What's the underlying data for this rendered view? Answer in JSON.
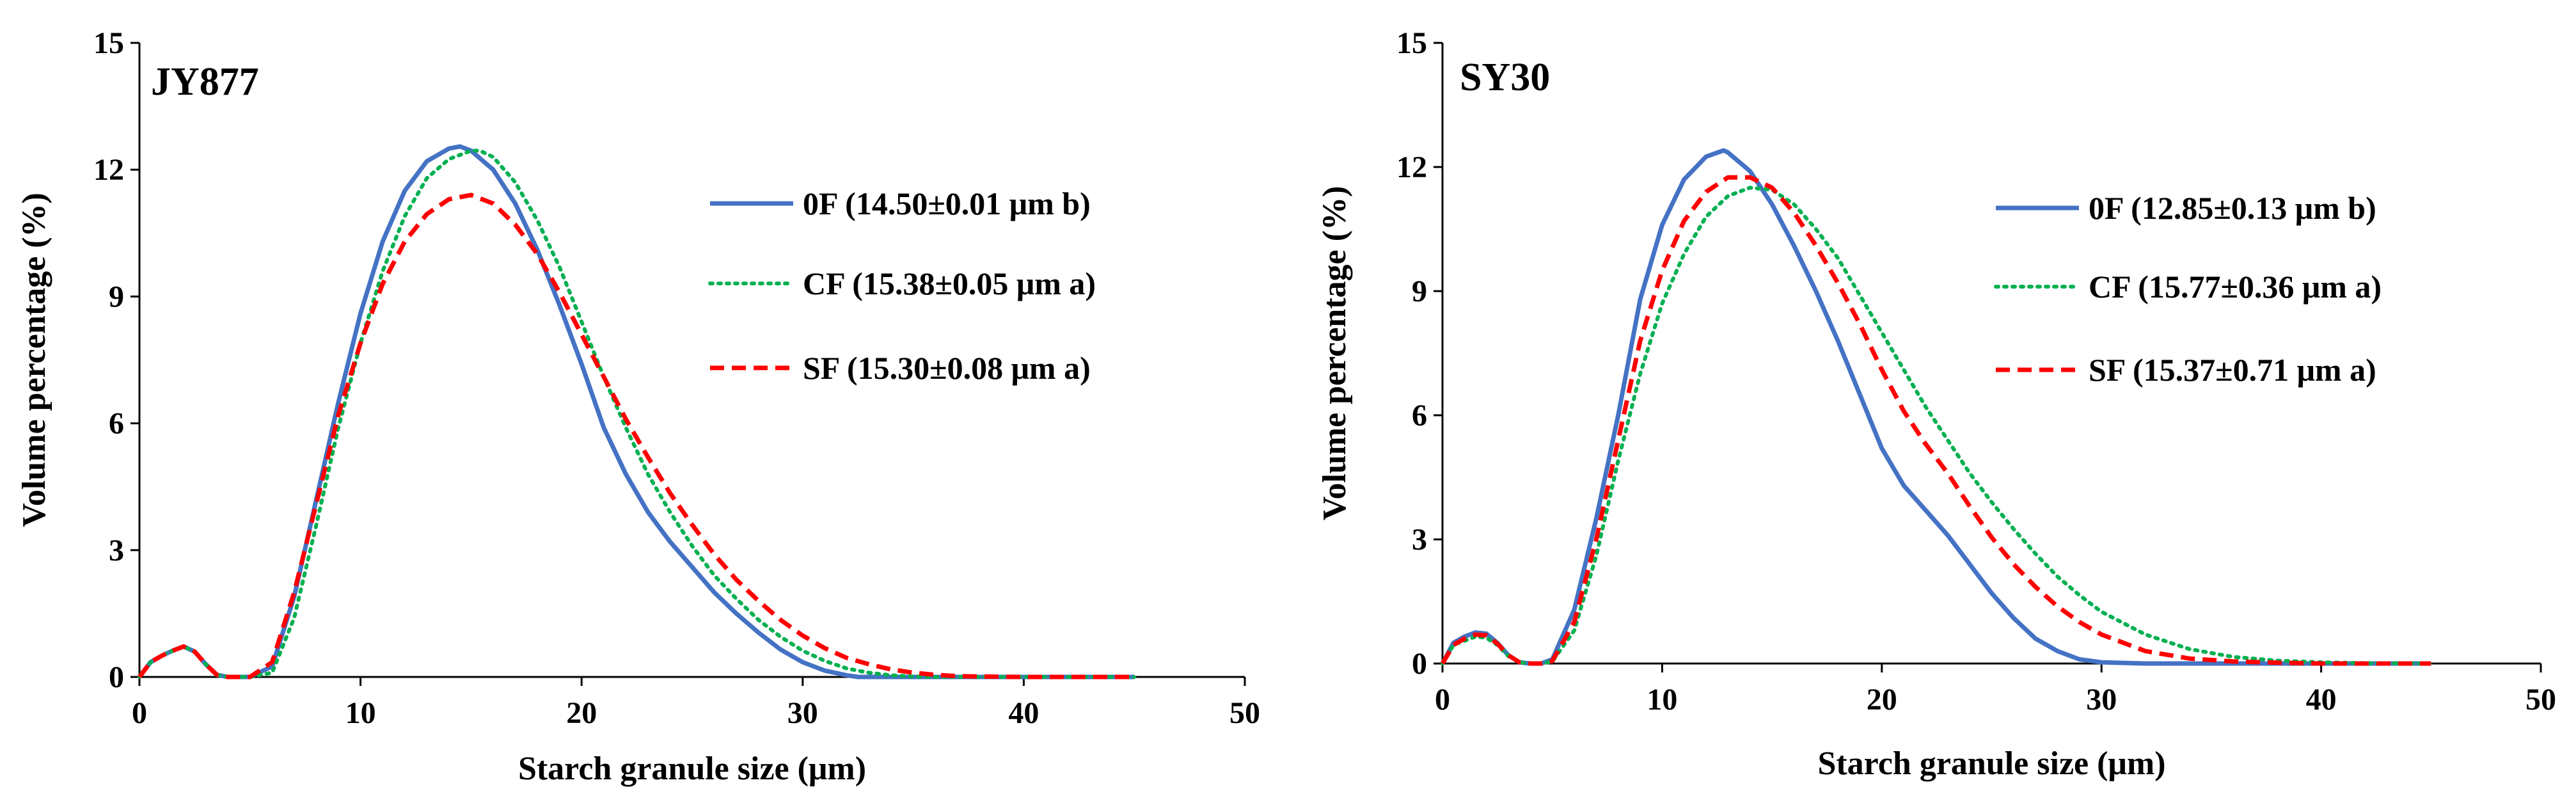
{
  "colors": {
    "zero_f": "#4472c4",
    "cf": "#00b050",
    "sf": "#ff0000",
    "axis": "#000000"
  },
  "chart_data": [
    {
      "type": "line",
      "title": "JY877",
      "xlabel": "Starch granule size (μm)",
      "ylabel": "Volume percentage (%)",
      "xlim": [
        0,
        50
      ],
      "ylim": [
        0,
        15
      ],
      "xticks": [
        "0",
        "10",
        "20",
        "30",
        "40",
        "50"
      ],
      "yticks": [
        "0",
        "3",
        "6",
        "9",
        "12",
        "15"
      ],
      "series": [
        {
          "name": "0F (14.50±0.01 μm b)",
          "style": "solid",
          "x": [
            0,
            0.5,
            1,
            1.5,
            2,
            2.5,
            3,
            3.5,
            4,
            5,
            6,
            7,
            8,
            9,
            10,
            11,
            12,
            13,
            14,
            14.5,
            15,
            16,
            17,
            18,
            19,
            20,
            21,
            22,
            23,
            24,
            25,
            26,
            27,
            28,
            29,
            30,
            31,
            32,
            32.5,
            33,
            35,
            40,
            45
          ],
          "y": [
            0,
            0.35,
            0.5,
            0.62,
            0.72,
            0.6,
            0.3,
            0.05,
            0,
            0,
            0.25,
            1.9,
            4.2,
            6.5,
            8.6,
            10.3,
            11.5,
            12.2,
            12.5,
            12.55,
            12.45,
            12.0,
            11.2,
            10.1,
            8.8,
            7.4,
            5.9,
            4.8,
            3.9,
            3.2,
            2.6,
            2.0,
            1.5,
            1.05,
            0.65,
            0.35,
            0.15,
            0.04,
            0,
            0,
            0,
            0,
            0
          ]
        },
        {
          "name": "CF (15.38±0.05 μm a)",
          "style": "dotted",
          "x": [
            0,
            0.5,
            1,
            1.5,
            2,
            2.5,
            3,
            3.5,
            4,
            5,
            6,
            7,
            8,
            9,
            10,
            11,
            12,
            13,
            14,
            15,
            15.4,
            16,
            17,
            18,
            19,
            20,
            21,
            22,
            23,
            24,
            25,
            26,
            27,
            28,
            29,
            30,
            31,
            32,
            33,
            34,
            35,
            36,
            40,
            45
          ],
          "y": [
            0,
            0.35,
            0.5,
            0.62,
            0.72,
            0.6,
            0.3,
            0.05,
            0,
            0,
            0.1,
            1.4,
            3.6,
            5.9,
            7.9,
            9.6,
            10.9,
            11.8,
            12.25,
            12.45,
            12.45,
            12.3,
            11.7,
            10.8,
            9.7,
            8.4,
            7.1,
            5.9,
            4.8,
            3.9,
            3.1,
            2.4,
            1.85,
            1.35,
            0.95,
            0.62,
            0.38,
            0.2,
            0.1,
            0.04,
            0.01,
            0,
            0,
            0
          ]
        },
        {
          "name": "SF (15.30±0.08 μm a)",
          "style": "dashed",
          "x": [
            0,
            0.5,
            1,
            1.5,
            2,
            2.5,
            3,
            3.5,
            4,
            5,
            6,
            7,
            8,
            9,
            10,
            11,
            12,
            13,
            14,
            15,
            16,
            17,
            18,
            19,
            20,
            21,
            22,
            23,
            24,
            25,
            26,
            27,
            28,
            29,
            30,
            31,
            32,
            33,
            34,
            35,
            36,
            37,
            38,
            40,
            45
          ],
          "y": [
            0,
            0.35,
            0.5,
            0.62,
            0.72,
            0.6,
            0.3,
            0.05,
            0,
            0,
            0.35,
            2.0,
            4.1,
            6.2,
            7.9,
            9.3,
            10.3,
            10.95,
            11.3,
            11.4,
            11.2,
            10.7,
            10.0,
            9.1,
            8.1,
            7.1,
            6.1,
            5.2,
            4.35,
            3.6,
            2.9,
            2.3,
            1.8,
            1.35,
            0.98,
            0.68,
            0.45,
            0.3,
            0.18,
            0.1,
            0.05,
            0.02,
            0.01,
            0,
            0
          ]
        }
      ]
    },
    {
      "type": "line",
      "title": "SY30",
      "xlabel": "Starch granule size (μm)",
      "ylabel": "Volume percentage (%)",
      "xlim": [
        0,
        50
      ],
      "ylim": [
        0,
        15
      ],
      "xticks": [
        "0",
        "10",
        "20",
        "30",
        "40",
        "50"
      ],
      "yticks": [
        "0",
        "3",
        "6",
        "9",
        "12",
        "15"
      ],
      "series": [
        {
          "name": "0F (12.85±0.13 μm b)",
          "style": "solid",
          "x": [
            0,
            0.5,
            1,
            1.5,
            2,
            2.5,
            3,
            3.5,
            4,
            4.5,
            5,
            6,
            7,
            8,
            9,
            10,
            11,
            12,
            12.8,
            13,
            14,
            15,
            16,
            17,
            18,
            19,
            20,
            21,
            22,
            23,
            24,
            25,
            26,
            27,
            28,
            29,
            30,
            32,
            35,
            40,
            45
          ],
          "y": [
            0,
            0.5,
            0.65,
            0.75,
            0.72,
            0.5,
            0.2,
            0.03,
            0,
            0,
            0.1,
            1.3,
            3.5,
            6.0,
            8.8,
            10.6,
            11.7,
            12.25,
            12.4,
            12.35,
            11.9,
            11.1,
            10.1,
            9.0,
            7.8,
            6.5,
            5.2,
            4.3,
            3.7,
            3.1,
            2.4,
            1.7,
            1.1,
            0.6,
            0.3,
            0.1,
            0.03,
            0,
            0,
            0,
            0
          ]
        },
        {
          "name": "CF (15.77±0.36 μm a)",
          "style": "dotted",
          "x": [
            0,
            0.5,
            1,
            1.5,
            2,
            2.5,
            3,
            3.5,
            4,
            4.5,
            5,
            6,
            7,
            8,
            9,
            10,
            11,
            12,
            13,
            14,
            15,
            16,
            17,
            18,
            19,
            20,
            21,
            22,
            23,
            24,
            25,
            26,
            27,
            28,
            29,
            30,
            32,
            34,
            36,
            38,
            40,
            42,
            45
          ],
          "y": [
            0,
            0.45,
            0.55,
            0.65,
            0.62,
            0.45,
            0.18,
            0.03,
            0,
            0,
            0.05,
            0.8,
            2.6,
            4.9,
            7.0,
            8.7,
            9.9,
            10.8,
            11.3,
            11.5,
            11.45,
            11.1,
            10.5,
            9.8,
            8.9,
            8.0,
            7.1,
            6.2,
            5.4,
            4.6,
            3.9,
            3.25,
            2.65,
            2.1,
            1.65,
            1.25,
            0.7,
            0.35,
            0.16,
            0.07,
            0.03,
            0.01,
            0
          ]
        },
        {
          "name": "SF (15.37±0.71 μm a)",
          "style": "dashed",
          "x": [
            0,
            0.5,
            1,
            1.5,
            2,
            2.5,
            3,
            3.5,
            4,
            4.5,
            5,
            6,
            7,
            8,
            9,
            10,
            11,
            12,
            13,
            14,
            15,
            16,
            17,
            18,
            19,
            20,
            21,
            22,
            23,
            24,
            25,
            26,
            27,
            28,
            29,
            30,
            32,
            34,
            36,
            38,
            40,
            45
          ],
          "y": [
            0,
            0.45,
            0.6,
            0.7,
            0.68,
            0.48,
            0.2,
            0.03,
            0,
            0,
            0.06,
            1.0,
            3.0,
            5.4,
            7.8,
            9.5,
            10.7,
            11.4,
            11.75,
            11.75,
            11.5,
            10.9,
            10.1,
            9.2,
            8.2,
            7.1,
            6.1,
            5.3,
            4.6,
            3.8,
            3.05,
            2.4,
            1.85,
            1.38,
            1.0,
            0.7,
            0.3,
            0.12,
            0.05,
            0.02,
            0,
            0
          ]
        }
      ]
    }
  ]
}
